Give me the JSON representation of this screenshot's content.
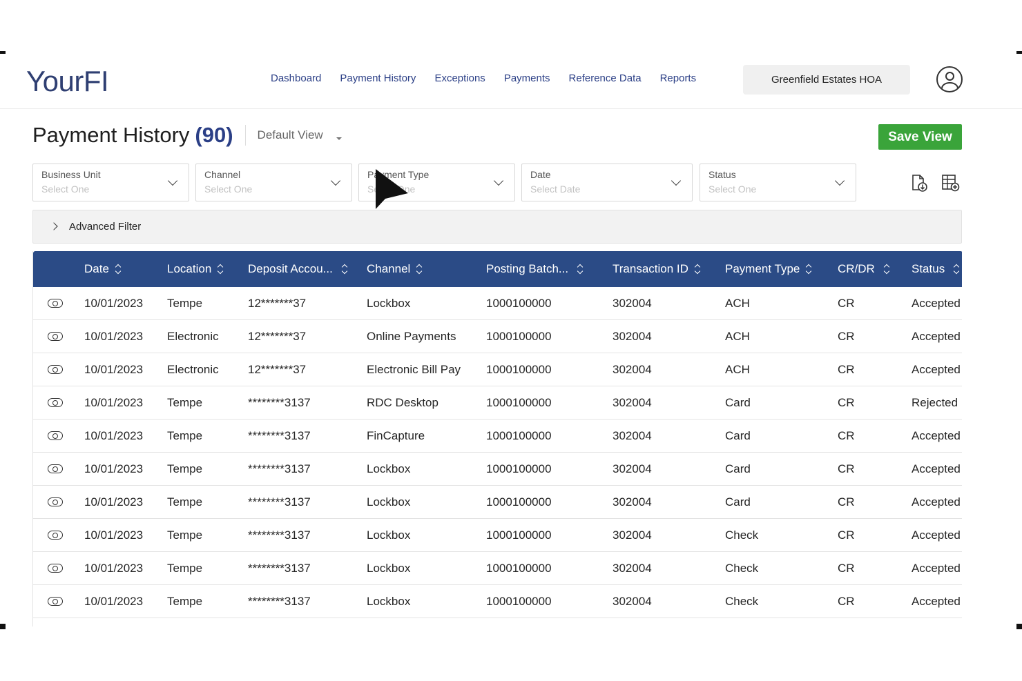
{
  "header": {
    "logo": {
      "main": "Your",
      "accent": "FI"
    },
    "nav": [
      "Dashboard",
      "Payment History",
      "Exceptions",
      "Payments",
      "Reference Data",
      "Reports"
    ],
    "organization": "Greenfield Estates HOA"
  },
  "page": {
    "title": "Payment History",
    "count": "(90)",
    "view": "Default View",
    "save_label": "Save View"
  },
  "filters": [
    {
      "label": "Business Unit",
      "placeholder": "Select One"
    },
    {
      "label": "Channel",
      "placeholder": "Select One"
    },
    {
      "label": "Payment Type",
      "placeholder": "Select One"
    },
    {
      "label": "Date",
      "placeholder": "Select Date"
    },
    {
      "label": "Status",
      "placeholder": "Select One"
    }
  ],
  "tools": [
    "download-file-icon",
    "add-column-icon"
  ],
  "advanced_filter": "Advanced Filter",
  "table": {
    "columns": [
      "Date",
      "Location",
      "Deposit Accou...",
      "Channel",
      "Posting Batch...",
      "Transaction ID",
      "Payment Type",
      "CR/DR",
      "Status"
    ],
    "rows": [
      [
        "10/01/2023",
        "Tempe",
        "12*******37",
        "Lockbox",
        "1000100000",
        "302004",
        "ACH",
        "CR",
        "Accepted"
      ],
      [
        "10/01/2023",
        "Electronic",
        "12*******37",
        "Online Payments",
        "1000100000",
        "302004",
        "ACH",
        "CR",
        "Accepted"
      ],
      [
        "10/01/2023",
        "Electronic",
        "12*******37",
        "Electronic Bill Pay",
        "1000100000",
        "302004",
        "ACH",
        "CR",
        "Accepted"
      ],
      [
        "10/01/2023",
        "Tempe",
        "********3137",
        "RDC Desktop",
        "1000100000",
        "302004",
        "Card",
        "CR",
        "Rejected"
      ],
      [
        "10/01/2023",
        "Tempe",
        "********3137",
        "FinCapture",
        "1000100000",
        "302004",
        "Card",
        "CR",
        "Accepted"
      ],
      [
        "10/01/2023",
        "Tempe",
        "********3137",
        "Lockbox",
        "1000100000",
        "302004",
        "Card",
        "CR",
        "Accepted"
      ],
      [
        "10/01/2023",
        "Tempe",
        "********3137",
        "Lockbox",
        "1000100000",
        "302004",
        "Card",
        "CR",
        "Accepted"
      ],
      [
        "10/01/2023",
        "Tempe",
        "********3137",
        "Lockbox",
        "1000100000",
        "302004",
        "Check",
        "CR",
        "Accepted"
      ],
      [
        "10/01/2023",
        "Tempe",
        "********3137",
        "Lockbox",
        "1000100000",
        "302004",
        "Check",
        "CR",
        "Accepted"
      ],
      [
        "10/01/2023",
        "Tempe",
        "********3137",
        "Lockbox",
        "1000100000",
        "302004",
        "Check",
        "CR",
        "Accepted"
      ]
    ]
  },
  "colors": {
    "brand": "#2b3f86",
    "header_bg": "#2b4b86",
    "save": "#3aa43a"
  }
}
